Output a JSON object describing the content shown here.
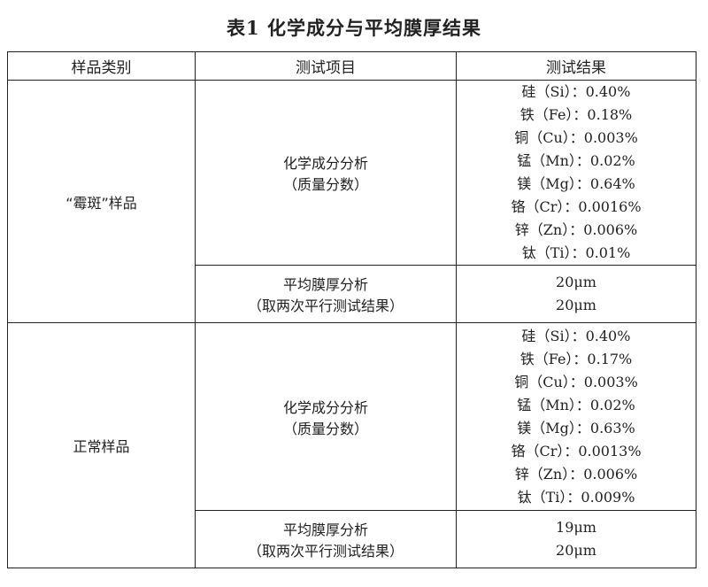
{
  "title": "表1 化学成分与平均膜厚结果",
  "headers": [
    "样品类别",
    "测试项目",
    "测试结果"
  ],
  "groups": [
    {
      "category": "“霉斑”样品",
      "chem_item": [
        "化学成分分析",
        "（质量分数）"
      ],
      "chem_results": [
        "硅（Si）：0.40%",
        "铁（Fe）：0.18%",
        "铜（Cu）：0.003%",
        "锰（Mn）：0.02%",
        "镁（Mg）：0.64%",
        "铬（Cr）：0.0016%",
        "锌（Zn）：0.006%",
        "钛（Ti）：0.01%"
      ],
      "film_item": [
        "平均膜厚分析",
        "（取两次平行测试结果）"
      ],
      "film_results": [
        "20μm",
        "20μm"
      ]
    },
    {
      "category": "正常样品",
      "chem_item": [
        "化学成分分析",
        "（质量分数）"
      ],
      "chem_results": [
        "硅（Si）：0.40%",
        "铁（Fe）：0.17%",
        "铜（Cu）：0.003%",
        "锰（Mn）：0.02%",
        "镁（Mg）：0.63%",
        "铬（Cr）：0.0013%",
        "锌（Zn）：0.006%",
        "钛（Ti）：0.009%"
      ],
      "film_item": [
        "平均膜厚分析",
        "（取两次平行测试结果）"
      ],
      "film_results": [
        "19μm",
        "20μm"
      ]
    }
  ]
}
